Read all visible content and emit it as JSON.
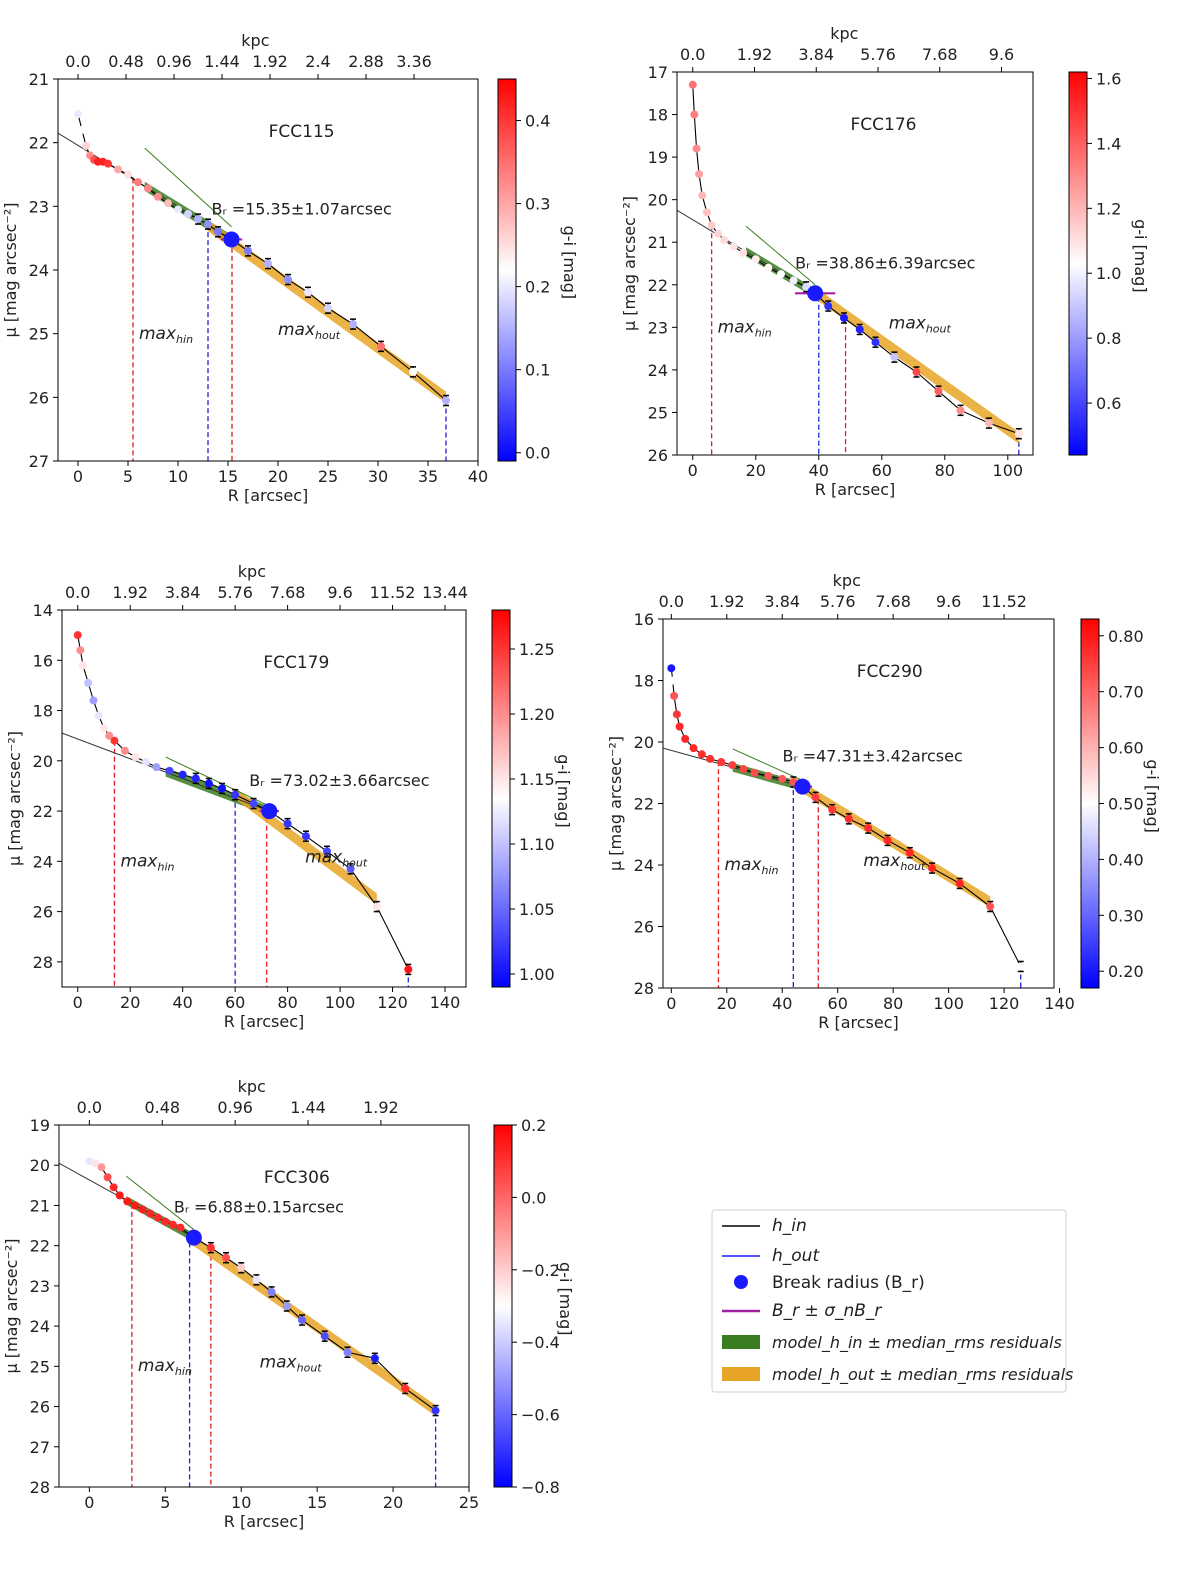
{
  "figure": {
    "kpc_label": "kpc",
    "cbar_label": "g-i [mag]"
  },
  "legend": {
    "h_in": "h_in",
    "h_out": "h_out",
    "break": "Break radius (B_r)",
    "sigma": "B_r ± σ_nB_r",
    "model_in": "model_h_in ± median_rms residuals",
    "model_out": "model_h_out ± median_rms residuals"
  },
  "chart_data": [
    {
      "type": "scatter",
      "title": "FCC115",
      "xlabel": "R [arcsec]",
      "ylabel": "μ [mag arcsec^-2]",
      "xlim": [
        -2,
        40
      ],
      "ylim": [
        27,
        21
      ],
      "xticks": [
        0,
        5,
        10,
        15,
        20,
        25,
        30,
        35,
        40
      ],
      "yticks": [
        21,
        22,
        23,
        24,
        25,
        26,
        27
      ],
      "kpc_ticks": [
        {
          "label": "0.0",
          "R": 0
        },
        {
          "label": "0.48",
          "R": 4.8
        },
        {
          "label": "0.96",
          "R": 9.6
        },
        {
          "label": "1.44",
          "R": 14.4
        },
        {
          "label": "1.92",
          "R": 19.2
        },
        {
          "label": "2.4",
          "R": 24
        },
        {
          "label": "2.88",
          "R": 28.8
        },
        {
          "label": "3.36",
          "R": 33.6
        }
      ],
      "colorbar": {
        "label": "g-i [mag]",
        "min": -0.01,
        "max": 0.45,
        "ticks": [
          0.0,
          0.1,
          0.2,
          0.3,
          0.4
        ]
      },
      "annotation": "B_r =15.35±1.07arcsec",
      "break": {
        "R": 15.35,
        "mu": 23.52,
        "err": 1.07
      },
      "max_in": {
        "label": "max_h_in",
        "R": 5.5
      },
      "max_out": {
        "label": "max_h_out",
        "R": 13
      },
      "red_line_R": 15.4,
      "blue_line_R": 36.8,
      "inner_line": {
        "x0": -2,
        "y0": 21.85,
        "x1": 15.35,
        "y1": 23.52
      },
      "outer_line": {
        "x0": 13,
        "y0": 23.3,
        "x1": 36.8,
        "y1": 26.0
      },
      "profile": [
        [
          0,
          21.55,
          0.2
        ],
        [
          0.4,
          21.8,
          0.22
        ],
        [
          0.8,
          22.05,
          0.26
        ],
        [
          1.2,
          22.2,
          0.32
        ],
        [
          1.6,
          22.27,
          0.38
        ],
        [
          2.0,
          22.3,
          0.42
        ],
        [
          2.5,
          22.3,
          0.42
        ],
        [
          3,
          22.33,
          0.4
        ],
        [
          4,
          22.42,
          0.3
        ],
        [
          5,
          22.5,
          0.25
        ],
        [
          6,
          22.62,
          0.34
        ],
        [
          7,
          22.72,
          0.33
        ],
        [
          8,
          22.85,
          0.32
        ],
        [
          9,
          22.95,
          0.28
        ],
        [
          10,
          23.05,
          0.2
        ],
        [
          11,
          23.12,
          0.18
        ],
        [
          12,
          23.2,
          0.15
        ],
        [
          13,
          23.28,
          0.12
        ],
        [
          14,
          23.4,
          0.1
        ],
        [
          15.35,
          23.52,
          0.05
        ],
        [
          17,
          23.7,
          0.1
        ],
        [
          19,
          23.9,
          0.15
        ],
        [
          21,
          24.15,
          0.12
        ],
        [
          23,
          24.35,
          0.2
        ],
        [
          25,
          24.6,
          0.18
        ],
        [
          27.5,
          24.85,
          0.15
        ],
        [
          30.3,
          25.2,
          0.35
        ],
        [
          33.5,
          25.6,
          0.22
        ],
        [
          36.8,
          26.05,
          0.15
        ]
      ]
    },
    {
      "type": "scatter",
      "title": "FCC176",
      "xlabel": "R [arcsec]",
      "ylabel": "μ [mag arcsec^-2]",
      "xlim": [
        -5,
        108
      ],
      "ylim": [
        26,
        17
      ],
      "xticks": [
        0,
        20,
        40,
        60,
        80,
        100
      ],
      "yticks": [
        17,
        18,
        19,
        20,
        21,
        22,
        23,
        24,
        25,
        26
      ],
      "kpc_ticks": [
        {
          "label": "0.0",
          "R": 0
        },
        {
          "label": "1.92",
          "R": 19.6
        },
        {
          "label": "3.84",
          "R": 39.2
        },
        {
          "label": "5.76",
          "R": 58.8
        },
        {
          "label": "7.68",
          "R": 78.4
        },
        {
          "label": "9.6",
          "R": 98
        }
      ],
      "colorbar": {
        "label": "g-i [mag]",
        "min": 0.44,
        "max": 1.62,
        "ticks": [
          0.6,
          0.8,
          1.0,
          1.2,
          1.4,
          1.6
        ]
      },
      "annotation": "B_r =38.86±6.39arcsec",
      "break": {
        "R": 38.86,
        "mu": 22.2,
        "err": 6.39
      },
      "max_in": {
        "label": "max_h_in",
        "R": 6
      },
      "max_out": {
        "label": "max_h_out",
        "R": 40
      },
      "red_line_R": 48.5,
      "blue_line_R": 103.5,
      "inner_line": {
        "x0": -5,
        "y0": 20.25,
        "x1": 38.86,
        "y1": 22.2
      },
      "outer_line": {
        "x0": 38,
        "y0": 22.15,
        "x1": 103.5,
        "y1": 25.6
      },
      "profile": [
        [
          0,
          17.3,
          1.35
        ],
        [
          0.5,
          18.0,
          1.33
        ],
        [
          1.2,
          18.8,
          1.3
        ],
        [
          2,
          19.4,
          1.25
        ],
        [
          3,
          19.9,
          1.2
        ],
        [
          4.5,
          20.3,
          1.17
        ],
        [
          6,
          20.6,
          1.15
        ],
        [
          8,
          20.8,
          1.13
        ],
        [
          10,
          20.95,
          1.12
        ],
        [
          13,
          21.1,
          1.1
        ],
        [
          16,
          21.25,
          1.1
        ],
        [
          20,
          21.4,
          1.07
        ],
        [
          24,
          21.6,
          1.05
        ],
        [
          28,
          21.75,
          1.03
        ],
        [
          32,
          21.9,
          1.0
        ],
        [
          36,
          22.05,
          0.95
        ],
        [
          38.86,
          22.2,
          0.6
        ],
        [
          43,
          22.5,
          0.55
        ],
        [
          48,
          22.78,
          0.5
        ],
        [
          53,
          23.05,
          0.52
        ],
        [
          58,
          23.35,
          0.55
        ],
        [
          64,
          23.7,
          0.9
        ],
        [
          71,
          24.05,
          1.45
        ],
        [
          78,
          24.5,
          1.4
        ],
        [
          85,
          24.95,
          1.3
        ],
        [
          94,
          25.25,
          1.2
        ],
        [
          103.5,
          25.5,
          1.1
        ]
      ]
    },
    {
      "type": "scatter",
      "title": "FCC179",
      "xlabel": "R [arcsec]",
      "ylabel": "μ [mag arcsec^-2]",
      "xlim": [
        -6,
        148
      ],
      "ylim": [
        29,
        14
      ],
      "xticks": [
        0,
        20,
        40,
        60,
        80,
        100,
        120,
        140
      ],
      "yticks": [
        14,
        16,
        18,
        20,
        22,
        24,
        26,
        28
      ],
      "kpc_ticks": [
        {
          "label": "0.0",
          "R": 0
        },
        {
          "label": "1.92",
          "R": 20
        },
        {
          "label": "3.84",
          "R": 40
        },
        {
          "label": "5.76",
          "R": 60
        },
        {
          "label": "7.68",
          "R": 80
        },
        {
          "label": "9.6",
          "R": 100
        },
        {
          "label": "11.52",
          "R": 120
        },
        {
          "label": "13.44",
          "R": 140
        }
      ],
      "colorbar": {
        "label": "g-i [mag]",
        "min": 0.99,
        "max": 1.28,
        "ticks": [
          1.0,
          1.05,
          1.1,
          1.15,
          1.2,
          1.25
        ]
      },
      "annotation": "B_r =73.02±3.66arcsec",
      "break": {
        "R": 73.02,
        "mu": 22.0,
        "err": 3.66
      },
      "max_in": {
        "label": "max_h_in",
        "R": 14
      },
      "max_out": {
        "label": "max_h_out",
        "R": 60
      },
      "red_line_R": 72,
      "blue_line_R": 126,
      "inner_line": {
        "x0": -6,
        "y0": 18.9,
        "x1": 73.02,
        "y1": 22.0
      },
      "outer_line": {
        "x0": 60,
        "y0": 21.3,
        "x1": 114,
        "y1": 25.5
      },
      "profile": [
        [
          0,
          15.0,
          1.25
        ],
        [
          1,
          15.6,
          1.2
        ],
        [
          2,
          16.2,
          1.15
        ],
        [
          4,
          16.9,
          1.1
        ],
        [
          6,
          17.6,
          1.08
        ],
        [
          8,
          18.2,
          1.12
        ],
        [
          10,
          18.7,
          1.15
        ],
        [
          12,
          19.0,
          1.2
        ],
        [
          14,
          19.2,
          1.25
        ],
        [
          18,
          19.6,
          1.2
        ],
        [
          22,
          19.85,
          1.15
        ],
        [
          26,
          20.05,
          1.12
        ],
        [
          30,
          20.25,
          1.08
        ],
        [
          35,
          20.4,
          1.03
        ],
        [
          40,
          20.55,
          1.01
        ],
        [
          45,
          20.7,
          1.01
        ],
        [
          50,
          20.9,
          1.0
        ],
        [
          55,
          21.1,
          1.0
        ],
        [
          60,
          21.35,
          1.02
        ],
        [
          67,
          21.7,
          1.03
        ],
        [
          73.02,
          22.0,
          1.0
        ],
        [
          80,
          22.5,
          1.02
        ],
        [
          87,
          23.0,
          1.02
        ],
        [
          95,
          23.6,
          1.03
        ],
        [
          104,
          24.3,
          1.04
        ],
        [
          114,
          25.8,
          1.15
        ],
        [
          126,
          28.3,
          1.27
        ]
      ]
    },
    {
      "type": "scatter",
      "title": "FCC290",
      "xlabel": "R [arcsec]",
      "ylabel": "μ [mag arcsec^-2]",
      "xlim": [
        -3,
        138
      ],
      "ylim": [
        28,
        16
      ],
      "xticks": [
        0,
        20,
        40,
        60,
        80,
        100,
        120,
        140
      ],
      "yticks": [
        16,
        18,
        20,
        22,
        24,
        26,
        28
      ],
      "kpc_ticks": [
        {
          "label": "0.0",
          "R": 0
        },
        {
          "label": "1.92",
          "R": 20
        },
        {
          "label": "3.84",
          "R": 40
        },
        {
          "label": "5.76",
          "R": 60
        },
        {
          "label": "7.68",
          "R": 80
        },
        {
          "label": "9.6",
          "R": 100
        },
        {
          "label": "11.52",
          "R": 120
        }
      ],
      "colorbar": {
        "label": "g-i [mag]",
        "min": 0.17,
        "max": 0.83,
        "ticks": [
          0.2,
          0.3,
          0.4,
          0.5,
          0.6,
          0.7,
          0.8
        ]
      },
      "annotation": "B_r =47.31±3.42arcsec",
      "break": {
        "R": 47.31,
        "mu": 21.45,
        "err": 3.42
      },
      "max_in": {
        "label": "max_h_in",
        "R": 17
      },
      "max_out": {
        "label": "max_h_out",
        "R": 44
      },
      "red_line_R": 53,
      "blue_line_R": 126,
      "inner_line": {
        "x0": -3,
        "y0": 20.2,
        "x1": 47.31,
        "y1": 21.45
      },
      "outer_line": {
        "x0": 44,
        "y0": 21.3,
        "x1": 115,
        "y1": 25.2
      },
      "profile": [
        [
          0,
          17.6,
          0.2
        ],
        [
          0.5,
          18.0,
          0.5
        ],
        [
          1,
          18.5,
          0.72
        ],
        [
          2,
          19.1,
          0.76
        ],
        [
          3,
          19.5,
          0.78
        ],
        [
          5,
          19.9,
          0.78
        ],
        [
          8,
          20.2,
          0.78
        ],
        [
          11,
          20.4,
          0.77
        ],
        [
          14,
          20.55,
          0.77
        ],
        [
          18,
          20.65,
          0.76
        ],
        [
          22,
          20.75,
          0.75
        ],
        [
          26,
          20.88,
          0.74
        ],
        [
          30,
          21.0,
          0.73
        ],
        [
          35,
          21.1,
          0.72
        ],
        [
          40,
          21.2,
          0.72
        ],
        [
          44,
          21.3,
          0.72
        ],
        [
          47.31,
          21.45,
          0.2
        ],
        [
          52,
          21.8,
          0.75
        ],
        [
          58,
          22.2,
          0.76
        ],
        [
          64,
          22.5,
          0.77
        ],
        [
          71,
          22.8,
          0.77
        ],
        [
          78,
          23.2,
          0.78
        ],
        [
          86,
          23.6,
          0.78
        ],
        [
          94,
          24.1,
          0.78
        ],
        [
          104,
          24.6,
          0.78
        ],
        [
          115,
          25.35,
          0.72
        ],
        [
          126,
          27.3,
          0.5
        ]
      ]
    },
    {
      "type": "scatter",
      "title": "FCC306",
      "xlabel": "R [arcsec]",
      "ylabel": "μ [mag arcsec^-2]",
      "xlim": [
        -2,
        25
      ],
      "ylim": [
        28,
        19
      ],
      "xticks": [
        0,
        5,
        10,
        15,
        20,
        25
      ],
      "yticks": [
        19,
        20,
        21,
        22,
        23,
        24,
        25,
        26,
        27,
        28
      ],
      "kpc_ticks": [
        {
          "label": "0.0",
          "R": 0
        },
        {
          "label": "0.48",
          "R": 4.8
        },
        {
          "label": "0.96",
          "R": 9.6
        },
        {
          "label": "1.44",
          "R": 14.4
        },
        {
          "label": "1.92",
          "R": 19.2
        }
      ],
      "colorbar": {
        "label": "g-i [mag]",
        "min": -0.8,
        "max": 0.2,
        "ticks": [
          -0.8,
          -0.6,
          -0.4,
          -0.2,
          0.0,
          0.2
        ]
      },
      "annotation": "B_r =6.88±0.15arcsec",
      "break": {
        "R": 6.88,
        "mu": 21.8,
        "err": 0.15
      },
      "max_in": {
        "label": "max_h_in",
        "R": 2.8
      },
      "max_out": {
        "label": "max_h_out",
        "R": 6.6
      },
      "red_line_R": 8,
      "blue_line_R": 22.8,
      "inner_line": {
        "x0": -2,
        "y0": 19.95,
        "x1": 6.88,
        "y1": 21.8
      },
      "outer_line": {
        "x0": 6.6,
        "y0": 21.8,
        "x1": 22.8,
        "y1": 26.1
      },
      "profile": [
        [
          0,
          19.9,
          -0.35
        ],
        [
          0.4,
          19.95,
          -0.25
        ],
        [
          0.8,
          20.05,
          -0.1
        ],
        [
          1.2,
          20.3,
          0.05
        ],
        [
          1.6,
          20.55,
          0.12
        ],
        [
          2.0,
          20.75,
          0.15
        ],
        [
          2.5,
          20.9,
          0.15
        ],
        [
          3,
          21.0,
          0.15
        ],
        [
          3.5,
          21.1,
          0.14
        ],
        [
          4,
          21.2,
          0.13
        ],
        [
          4.5,
          21.3,
          0.12
        ],
        [
          5,
          21.4,
          0.12
        ],
        [
          5.5,
          21.48,
          0.12
        ],
        [
          6,
          21.55,
          0.12
        ],
        [
          6.88,
          21.8,
          -0.75
        ],
        [
          8,
          22.05,
          0.1
        ],
        [
          9,
          22.3,
          0.05
        ],
        [
          10,
          22.55,
          -0.2
        ],
        [
          11,
          22.85,
          -0.35
        ],
        [
          12,
          23.15,
          -0.55
        ],
        [
          13,
          23.5,
          -0.5
        ],
        [
          14,
          23.85,
          -0.6
        ],
        [
          15.5,
          24.25,
          -0.65
        ],
        [
          17,
          24.65,
          -0.55
        ],
        [
          18.8,
          24.8,
          -0.75
        ],
        [
          20.8,
          25.55,
          0.1
        ],
        [
          22.8,
          26.1,
          -0.7
        ]
      ]
    }
  ]
}
